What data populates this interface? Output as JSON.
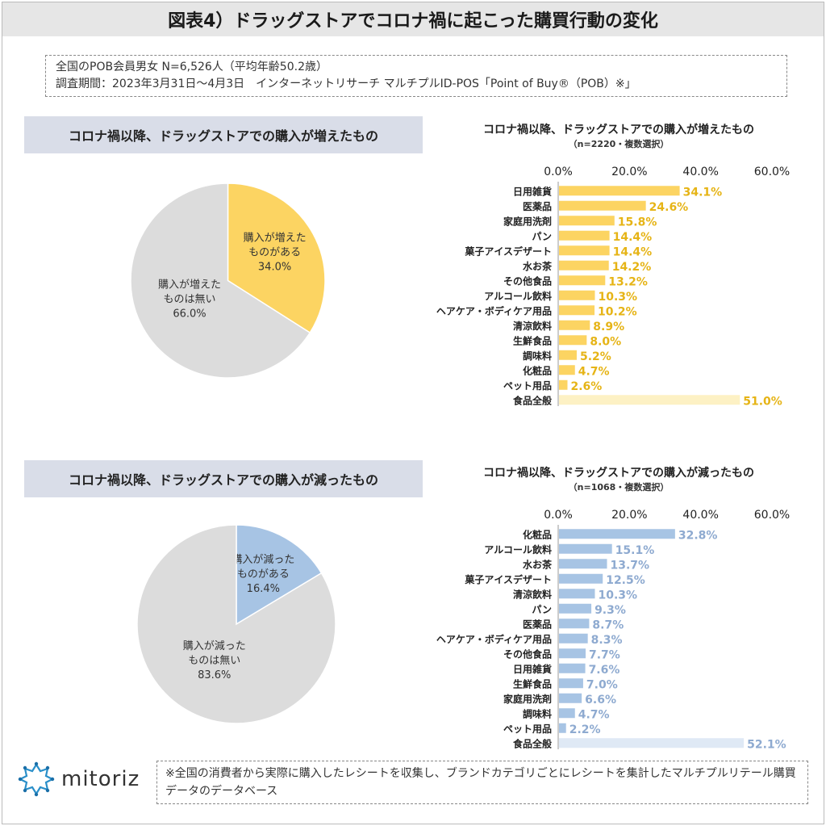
{
  "page": {
    "title": "図表4）ドラッグストアでコロナ禍に起こった購買行動の変化",
    "info_line1": "全国のPOB会員男女 N=6,526人（平均年齢50.2歳）",
    "info_line2": "調査期間：2023年3月31日～4月3日　インターネットリサーチ マルチプルID-POS「Point of Buy®（POB）※」",
    "footer_note": "※全国の消費者から実際に購入したレシートを収集し、ブランドカテゴリごとにレシートを集計したマルチプルリテール購買データのデータベース",
    "logo_text": "mitoriz"
  },
  "colors": {
    "increase": "#fcd462",
    "increase_light": "#fdf1c4",
    "increase_label": "#e6b416",
    "decrease": "#a7c4e4",
    "decrease_light": "#dfe9f5",
    "decrease_label": "#8eaad0",
    "pie_gray": "#dcdcdc"
  },
  "chart_data": [
    {
      "type": "pie",
      "section_title": "コロナ禍以降、ドラッグストアでの購入が増えたもの",
      "slices": [
        {
          "label_l1": "購入が増えた",
          "label_l2": "ものがある",
          "value": 34.0,
          "value_label": "34.0%"
        },
        {
          "label_l1": "購入が増えた",
          "label_l2": "ものは無い",
          "value": 66.0,
          "value_label": "66.0%"
        }
      ]
    },
    {
      "type": "bar",
      "title": "コロナ禍以降、ドラッグストアでの購入が増えたもの",
      "subtitle": "（n=2220・複数選択）",
      "xlim": [
        0,
        60
      ],
      "ticks": [
        "0.0%",
        "20.0%",
        "40.0%",
        "60.0%"
      ],
      "categories": [
        "日用雑貨",
        "医薬品",
        "家庭用洗剤",
        "パン",
        "菓子アイスデザート",
        "水お茶",
        "その他食品",
        "アルコール飲料",
        "ヘアケア・ボディケア用品",
        "清涼飲料",
        "生鮮食品",
        "調味料",
        "化粧品",
        "ペット用品",
        "食品全般"
      ],
      "values": [
        34.1,
        24.6,
        15.8,
        14.4,
        14.4,
        14.2,
        13.2,
        10.3,
        10.2,
        8.9,
        8.0,
        5.2,
        4.7,
        2.6,
        51.0
      ],
      "value_labels": [
        "34.1%",
        "24.6%",
        "15.8%",
        "14.4%",
        "14.4%",
        "14.2%",
        "13.2%",
        "10.3%",
        "10.2%",
        "8.9%",
        "8.0%",
        "5.2%",
        "4.7%",
        "2.6%",
        "51.0%"
      ],
      "highlight_last": true
    },
    {
      "type": "pie",
      "section_title": "コロナ禍以降、ドラッグストアでの購入が減ったもの",
      "slices": [
        {
          "label_l1": "購入が減った",
          "label_l2": "ものがある",
          "value": 16.4,
          "value_label": "16.4%"
        },
        {
          "label_l1": "購入が減った",
          "label_l2": "ものは無い",
          "value": 83.6,
          "value_label": "83.6%"
        }
      ]
    },
    {
      "type": "bar",
      "title": "コロナ禍以降、ドラッグストアでの購入が減ったもの",
      "subtitle": "（n=1068・複数選択）",
      "xlim": [
        0,
        60
      ],
      "ticks": [
        "0.0%",
        "20.0%",
        "40.0%",
        "60.0%"
      ],
      "categories": [
        "化粧品",
        "アルコール飲料",
        "水お茶",
        "菓子アイスデザート",
        "清涼飲料",
        "パン",
        "医薬品",
        "ヘアケア・ボディケア用品",
        "その他食品",
        "日用雑貨",
        "生鮮食品",
        "家庭用洗剤",
        "調味料",
        "ペット用品",
        "食品全般"
      ],
      "values": [
        32.8,
        15.1,
        13.7,
        12.5,
        10.3,
        9.3,
        8.7,
        8.3,
        7.7,
        7.6,
        7.0,
        6.6,
        4.7,
        2.2,
        52.1
      ],
      "value_labels": [
        "32.8%",
        "15.1%",
        "13.7%",
        "12.5%",
        "10.3%",
        "9.3%",
        "8.7%",
        "8.3%",
        "7.7%",
        "7.6%",
        "7.0%",
        "6.6%",
        "4.7%",
        "2.2%",
        "52.1%"
      ],
      "highlight_last": true
    }
  ]
}
